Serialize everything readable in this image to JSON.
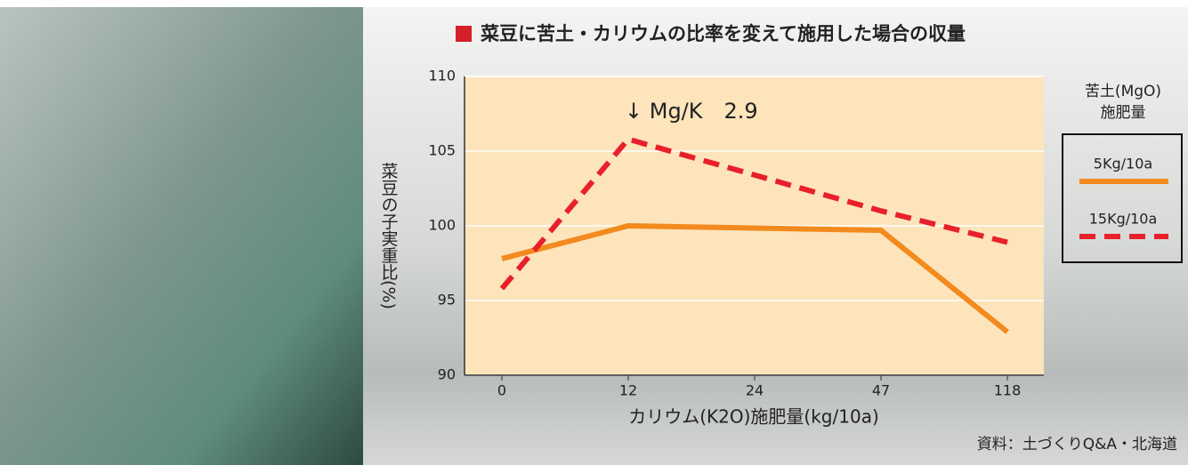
{
  "chart_data": {
    "type": "line",
    "title": "菜豆に苦土・カリウムの比率を変えて施用した場合の収量",
    "annotation": "↓ Mg/K　2.9",
    "x_label": "カリウム(K2O)施肥量(kg/10a)",
    "y_label": "菜豆の子実重比(%)",
    "legend_title": [
      "苦土(MgO)",
      "施肥量"
    ],
    "source": "資料：土づくりQ&A・北海道",
    "categories": [
      "0",
      "12",
      "24",
      "47",
      "118"
    ],
    "series": [
      {
        "name": "5Kg/10a",
        "color": "#f28a1e",
        "dash": false,
        "values": [
          97.8,
          100.0,
          99.85,
          99.7,
          92.9
        ]
      },
      {
        "name": "15Kg/10a",
        "color": "#e8202a",
        "dash": true,
        "values": [
          95.8,
          105.8,
          103.4,
          101.0,
          98.9
        ]
      }
    ],
    "ylim": [
      90,
      110
    ],
    "yticks": [
      90,
      95,
      100,
      105,
      110
    ],
    "grid": true,
    "plot_background": "#fde4bb"
  }
}
